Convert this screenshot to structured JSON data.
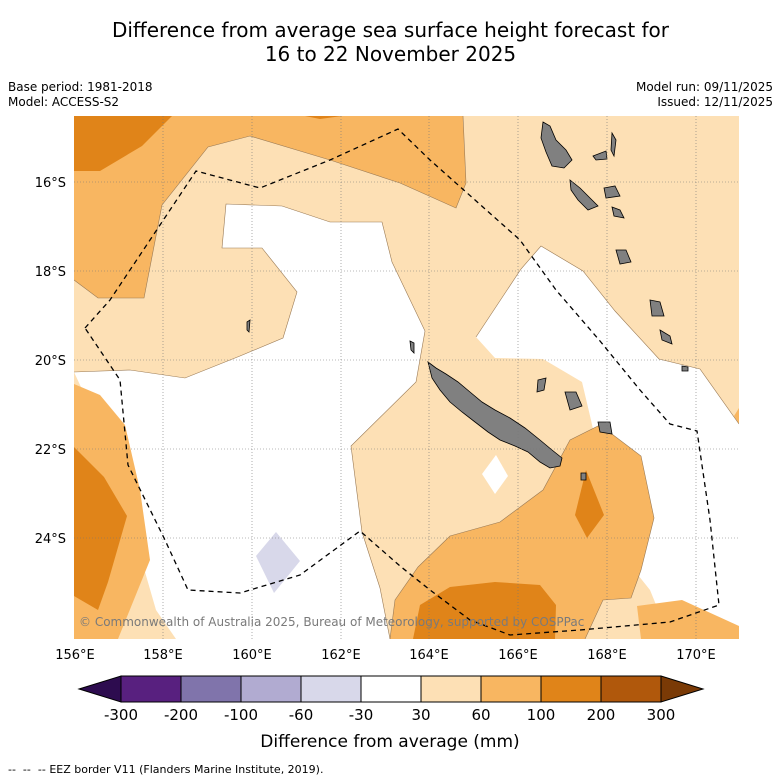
{
  "title": {
    "line1": "Difference from average sea surface height forecast for",
    "line2": "16 to 22 November 2025"
  },
  "meta": {
    "base_period": "Base period: 1981-2018",
    "model": "Model: ACCESS-S2",
    "model_run": "Model run: 09/11/2025",
    "issued": "Issued: 12/11/2025"
  },
  "map": {
    "lat_labels": [
      "16°S",
      "18°S",
      "20°S",
      "22°S",
      "24°S"
    ],
    "lon_labels": [
      "156°E",
      "158°E",
      "160°E",
      "162°E",
      "164°E",
      "166°E",
      "168°E",
      "170°E"
    ],
    "copyright": "© Commonwealth of Australia 2025, Bureau of Meteorology, supported by COSPPac",
    "legend_eez": "EEZ border V11 (Flanders Marine Institute, 2019)."
  },
  "colorbar": {
    "title": "Difference from average (mm)",
    "tick_labels": [
      "-300",
      "-200",
      "-100",
      "-60",
      "-30",
      "30",
      "60",
      "100",
      "200",
      "300"
    ],
    "colors": [
      "#2d0c4f",
      "#58207f",
      "#8074ab",
      "#b1abd1",
      "#d8d8ea",
      "#ffffff",
      "#fde0b5",
      "#f8b661",
      "#e08419",
      "#b0580c",
      "#7a3a06"
    ]
  },
  "colors": {
    "land": "#808080",
    "grid": "#777777"
  }
}
